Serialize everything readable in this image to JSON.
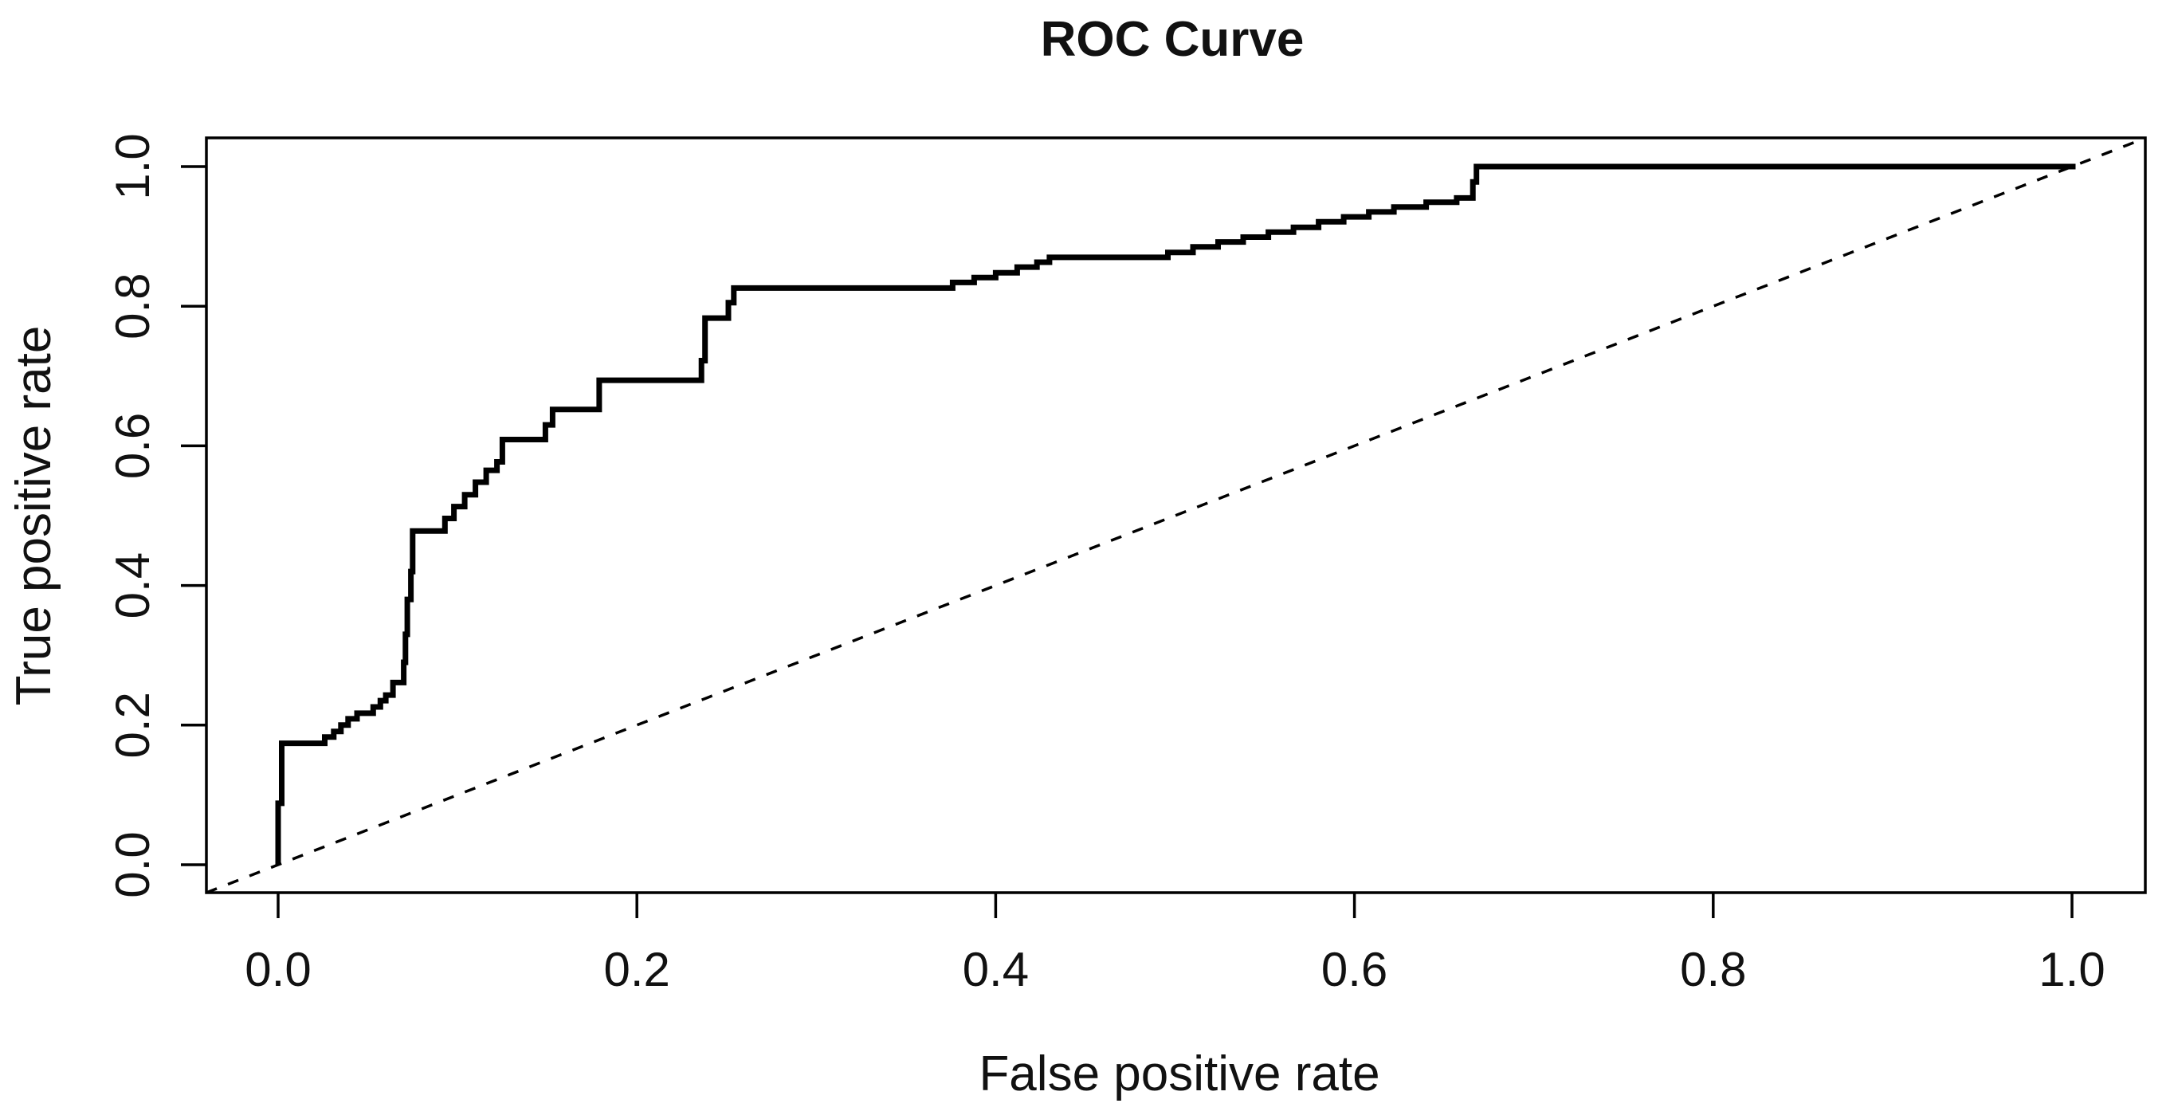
{
  "figure": {
    "title": "ROC Curve",
    "xlabel": "False positive rate",
    "ylabel": "True positive rate"
  },
  "chart_data": {
    "type": "line",
    "subtype": "roc-step-curve",
    "title": "ROC Curve",
    "xlabel": "False positive rate",
    "ylabel": "True positive rate",
    "xlim": [
      -0.043,
      1.043
    ],
    "ylim": [
      -0.043,
      1.043
    ],
    "grid": false,
    "legend_position": "none",
    "background_color": "#ffffff",
    "line_color": "#000000",
    "x_tick_labels": [
      "0.0",
      "0.2",
      "0.4",
      "0.6",
      "0.8",
      "1.0"
    ],
    "x_tick_values": [
      0.0,
      0.2,
      0.4,
      0.6,
      0.8,
      1.0
    ],
    "y_tick_labels": [
      "0.0",
      "0.2",
      "0.4",
      "0.6",
      "0.8",
      "1.0"
    ],
    "y_tick_values": [
      0.0,
      0.2,
      0.4,
      0.6,
      0.8,
      1.0
    ],
    "series": [
      {
        "name": "roc_curve",
        "style": "solid",
        "interpolation": "step-after",
        "color": "#000000",
        "line_width": 7,
        "points": [
          [
            0.0,
            0.0
          ],
          [
            0.0,
            0.088
          ],
          [
            0.002,
            0.174
          ],
          [
            0.024,
            0.174
          ],
          [
            0.026,
            0.183
          ],
          [
            0.031,
            0.191
          ],
          [
            0.035,
            0.2
          ],
          [
            0.039,
            0.209
          ],
          [
            0.044,
            0.217
          ],
          [
            0.05,
            0.217
          ],
          [
            0.053,
            0.226
          ],
          [
            0.057,
            0.235
          ],
          [
            0.06,
            0.243
          ],
          [
            0.064,
            0.261
          ],
          [
            0.069,
            0.261
          ],
          [
            0.07,
            0.29
          ],
          [
            0.071,
            0.33
          ],
          [
            0.072,
            0.38
          ],
          [
            0.074,
            0.42
          ],
          [
            0.075,
            0.478
          ],
          [
            0.089,
            0.478
          ],
          [
            0.093,
            0.496
          ],
          [
            0.098,
            0.513
          ],
          [
            0.104,
            0.53
          ],
          [
            0.11,
            0.548
          ],
          [
            0.116,
            0.565
          ],
          [
            0.122,
            0.577
          ],
          [
            0.125,
            0.609
          ],
          [
            0.146,
            0.609
          ],
          [
            0.149,
            0.63
          ],
          [
            0.153,
            0.652
          ],
          [
            0.179,
            0.652
          ],
          [
            0.179,
            0.694
          ],
          [
            0.234,
            0.694
          ],
          [
            0.236,
            0.722
          ],
          [
            0.238,
            0.783
          ],
          [
            0.248,
            0.783
          ],
          [
            0.251,
            0.805
          ],
          [
            0.254,
            0.826
          ],
          [
            0.364,
            0.826
          ],
          [
            0.376,
            0.834
          ],
          [
            0.388,
            0.841
          ],
          [
            0.4,
            0.848
          ],
          [
            0.412,
            0.856
          ],
          [
            0.423,
            0.863
          ],
          [
            0.43,
            0.87
          ],
          [
            0.482,
            0.87
          ],
          [
            0.496,
            0.877
          ],
          [
            0.51,
            0.885
          ],
          [
            0.524,
            0.892
          ],
          [
            0.538,
            0.899
          ],
          [
            0.552,
            0.906
          ],
          [
            0.566,
            0.913
          ],
          [
            0.58,
            0.921
          ],
          [
            0.594,
            0.928
          ],
          [
            0.608,
            0.935
          ],
          [
            0.622,
            0.942
          ],
          [
            0.64,
            0.949
          ],
          [
            0.657,
            0.955
          ],
          [
            0.664,
            0.955
          ],
          [
            0.666,
            0.978
          ],
          [
            0.668,
            1.0
          ],
          [
            1.002,
            1.0
          ]
        ]
      },
      {
        "name": "chance_diagonal",
        "style": "dashed",
        "interpolation": "linear",
        "color": "#000000",
        "line_width": 3.5,
        "points": [
          [
            -0.04,
            -0.04
          ],
          [
            1.041,
            1.041
          ]
        ]
      }
    ]
  }
}
